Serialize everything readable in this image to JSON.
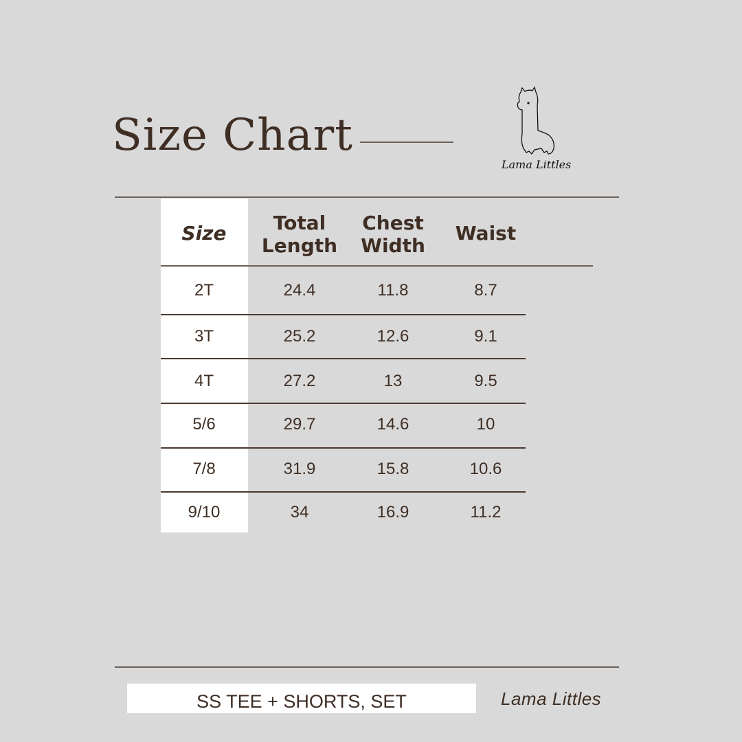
{
  "header": {
    "title": "Size Chart",
    "logo_text": "Lama Littles"
  },
  "table": {
    "columns": [
      "Size",
      "Total\nLength",
      "Chest\nWidth",
      "Waist"
    ],
    "rows": [
      [
        "2T",
        "24.4",
        "11.8",
        "8.7"
      ],
      [
        "3T",
        "25.2",
        "12.6",
        "9.1"
      ],
      [
        "4T",
        "27.2",
        "13",
        "9.5"
      ],
      [
        "5/6",
        "29.7",
        "14.6",
        "10"
      ],
      [
        "7/8",
        "31.9",
        "15.8",
        "10.6"
      ],
      [
        "9/10",
        "34",
        "16.9",
        "11.2"
      ]
    ]
  },
  "footer": {
    "product": "SS TEE + SHORTS, SET",
    "brand": "Lama Littles"
  },
  "colors": {
    "background": "#d9d9d9",
    "text": "#3f2e24",
    "panel": "#ffffff"
  }
}
